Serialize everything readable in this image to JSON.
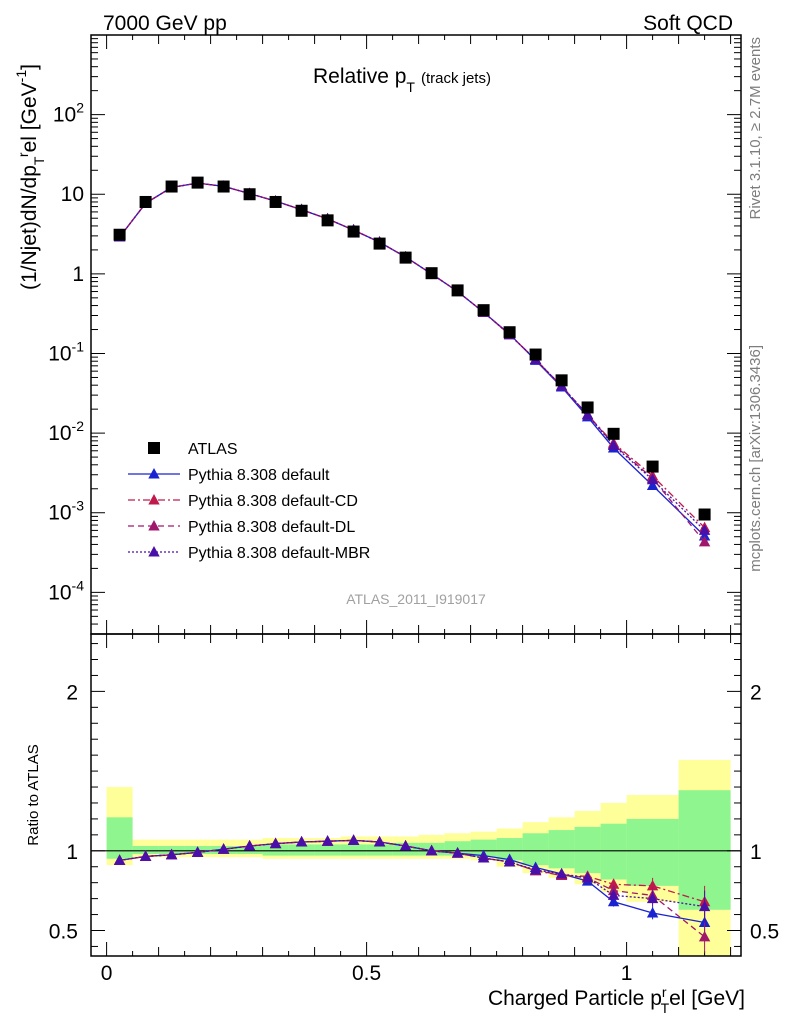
{
  "header": {
    "left": "7000 GeV pp",
    "right": "Soft QCD"
  },
  "side_labels": {
    "rivet": "Rivet 3.1.10, ≥ 2.7M events",
    "source": "mcplots.cern.ch [arXiv:1306.3436]"
  },
  "analysis_id": "ATLAS_2011_I919017",
  "chart_data": [
    {
      "type": "line",
      "title": "Relative p_T (track jets)",
      "ylabel": "(1/Njet)dN/dp_T^rel [GeV^-1]",
      "xlabel": "",
      "yscale": "log",
      "xlim": [
        -0.03,
        1.22
      ],
      "ylim": [
        3e-05,
        1000
      ],
      "ytick_labels": [
        "10^-4",
        "10^-3",
        "10^-2",
        "10^-1",
        "1",
        "10",
        "10^2"
      ],
      "legend_position": "lower-left",
      "x": [
        0.025,
        0.075,
        0.125,
        0.175,
        0.225,
        0.275,
        0.325,
        0.375,
        0.425,
        0.475,
        0.525,
        0.575,
        0.625,
        0.675,
        0.725,
        0.775,
        0.825,
        0.875,
        0.925,
        0.975,
        1.05,
        1.15
      ],
      "series": [
        {
          "name": "ATLAS",
          "color": "#000000",
          "style": "markers",
          "values": [
            3.1,
            8.0,
            12.5,
            14.0,
            12.5,
            10.0,
            8.0,
            6.2,
            4.7,
            3.4,
            2.4,
            1.6,
            1.02,
            0.62,
            0.35,
            0.185,
            0.097,
            0.046,
            0.021,
            0.0098,
            0.0038,
            0.00095
          ]
        },
        {
          "name": "Pythia 8.308 default",
          "color": "#1a23d0",
          "style": "solid",
          "values": [
            2.9,
            7.7,
            12.2,
            13.8,
            12.6,
            10.2,
            8.2,
            6.4,
            4.9,
            3.55,
            2.5,
            1.63,
            1.0,
            0.6,
            0.33,
            0.175,
            0.082,
            0.038,
            0.016,
            0.0065,
            0.0022,
            0.00051
          ]
        },
        {
          "name": "Pythia 8.308 default-CD",
          "color": "#c01a4c",
          "style": "dashdot",
          "values": [
            2.9,
            7.7,
            12.2,
            13.8,
            12.6,
            10.2,
            8.2,
            6.4,
            4.9,
            3.55,
            2.5,
            1.63,
            1.0,
            0.6,
            0.33,
            0.172,
            0.084,
            0.039,
            0.017,
            0.0075,
            0.0029,
            0.00065
          ]
        },
        {
          "name": "Pythia 8.308 default-DL",
          "color": "#a0186c",
          "style": "dashed",
          "values": [
            2.9,
            7.7,
            12.2,
            13.8,
            12.6,
            10.2,
            8.2,
            6.4,
            4.9,
            3.55,
            2.5,
            1.63,
            1.0,
            0.6,
            0.33,
            0.172,
            0.084,
            0.039,
            0.017,
            0.0072,
            0.0027,
            0.00043
          ]
        },
        {
          "name": "Pythia 8.308 default-MBR",
          "color": "#4a0fa8",
          "style": "dotted",
          "values": [
            2.9,
            7.7,
            12.2,
            13.8,
            12.6,
            10.2,
            8.2,
            6.4,
            4.9,
            3.55,
            2.5,
            1.63,
            1.0,
            0.6,
            0.33,
            0.172,
            0.084,
            0.039,
            0.017,
            0.007,
            0.0026,
            0.0006
          ]
        }
      ]
    },
    {
      "type": "line",
      "title": "",
      "ylabel": "Ratio to ATLAS",
      "xlabel": "Charged Particle p_T^rel [GeV]",
      "xlim": [
        -0.03,
        1.22
      ],
      "ylim": [
        0.34,
        2.36
      ],
      "ytick_labels": [
        "0.5",
        "1",
        "2"
      ],
      "xtick_labels": [
        "0",
        "0.5",
        "1"
      ],
      "x": [
        0.025,
        0.075,
        0.125,
        0.175,
        0.225,
        0.275,
        0.325,
        0.375,
        0.425,
        0.475,
        0.525,
        0.575,
        0.625,
        0.675,
        0.725,
        0.775,
        0.825,
        0.875,
        0.925,
        0.975,
        1.05,
        1.15
      ],
      "bands": {
        "edges": [
          0.0,
          0.05,
          0.1,
          0.15,
          0.2,
          0.25,
          0.3,
          0.35,
          0.4,
          0.45,
          0.5,
          0.55,
          0.6,
          0.65,
          0.7,
          0.75,
          0.8,
          0.85,
          0.9,
          0.95,
          1.0,
          1.1,
          1.2
        ],
        "yellow": {
          "color": "#ffff9a",
          "low": [
            0.91,
            0.96,
            0.96,
            0.96,
            0.96,
            0.96,
            0.95,
            0.95,
            0.95,
            0.95,
            0.95,
            0.95,
            0.95,
            0.95,
            0.94,
            0.9,
            0.86,
            0.83,
            0.79,
            0.74,
            0.68,
            0.34
          ],
          "high": [
            1.4,
            1.07,
            1.07,
            1.07,
            1.07,
            1.07,
            1.08,
            1.08,
            1.08,
            1.09,
            1.09,
            1.09,
            1.1,
            1.11,
            1.12,
            1.14,
            1.18,
            1.21,
            1.25,
            1.3,
            1.35,
            1.57
          ]
        },
        "green": {
          "color": "#8ff58f",
          "low": [
            0.95,
            0.98,
            0.98,
            0.98,
            0.98,
            0.98,
            0.97,
            0.97,
            0.97,
            0.97,
            0.97,
            0.97,
            0.97,
            0.97,
            0.96,
            0.94,
            0.91,
            0.89,
            0.86,
            0.82,
            0.78,
            0.63
          ],
          "high": [
            1.21,
            1.03,
            1.03,
            1.03,
            1.03,
            1.03,
            1.04,
            1.04,
            1.04,
            1.04,
            1.04,
            1.05,
            1.05,
            1.06,
            1.07,
            1.08,
            1.11,
            1.13,
            1.15,
            1.17,
            1.2,
            1.38
          ]
        }
      },
      "series": [
        {
          "name": "Pythia 8.308 default",
          "color": "#1a23d0",
          "style": "solid",
          "values": [
            0.94,
            0.965,
            0.975,
            0.99,
            1.01,
            1.03,
            1.045,
            1.055,
            1.06,
            1.065,
            1.055,
            1.03,
            1.0,
            0.985,
            0.97,
            0.945,
            0.895,
            0.855,
            0.81,
            0.68,
            0.61,
            0.55
          ],
          "errors": [
            0.01,
            0.005,
            0.005,
            0.005,
            0.005,
            0.005,
            0.005,
            0.005,
            0.005,
            0.005,
            0.005,
            0.005,
            0.005,
            0.005,
            0.005,
            0.01,
            0.015,
            0.02,
            0.025,
            0.03,
            0.04,
            0.08
          ]
        },
        {
          "name": "Pythia 8.308 default-CD",
          "color": "#c01a4c",
          "style": "dashdot",
          "values": [
            0.94,
            0.965,
            0.975,
            0.99,
            1.01,
            1.03,
            1.045,
            1.055,
            1.06,
            1.065,
            1.055,
            1.03,
            1.0,
            0.985,
            0.955,
            0.93,
            0.875,
            0.845,
            0.84,
            0.79,
            0.78,
            0.68
          ],
          "errors": [
            0.01,
            0.005,
            0.005,
            0.005,
            0.005,
            0.005,
            0.005,
            0.005,
            0.005,
            0.005,
            0.005,
            0.005,
            0.005,
            0.005,
            0.005,
            0.01,
            0.015,
            0.02,
            0.025,
            0.03,
            0.05,
            0.1
          ]
        },
        {
          "name": "Pythia 8.308 default-DL",
          "color": "#a0186c",
          "style": "dashed",
          "values": [
            0.94,
            0.965,
            0.975,
            0.99,
            1.01,
            1.03,
            1.045,
            1.055,
            1.06,
            1.065,
            1.055,
            1.03,
            1.0,
            0.985,
            0.955,
            0.93,
            0.875,
            0.85,
            0.83,
            0.75,
            0.72,
            0.46
          ],
          "errors": [
            0.01,
            0.005,
            0.005,
            0.005,
            0.005,
            0.005,
            0.005,
            0.005,
            0.005,
            0.005,
            0.005,
            0.005,
            0.005,
            0.005,
            0.005,
            0.01,
            0.015,
            0.02,
            0.025,
            0.03,
            0.05,
            0.1
          ]
        },
        {
          "name": "Pythia 8.308 default-MBR",
          "color": "#4a0fa8",
          "style": "dotted",
          "values": [
            0.94,
            0.965,
            0.975,
            0.99,
            1.01,
            1.03,
            1.045,
            1.055,
            1.06,
            1.065,
            1.055,
            1.03,
            1.0,
            0.985,
            0.955,
            0.93,
            0.88,
            0.855,
            0.83,
            0.72,
            0.7,
            0.65
          ],
          "errors": [
            0.01,
            0.005,
            0.005,
            0.005,
            0.005,
            0.005,
            0.005,
            0.005,
            0.005,
            0.005,
            0.005,
            0.005,
            0.005,
            0.005,
            0.005,
            0.01,
            0.015,
            0.02,
            0.025,
            0.03,
            0.05,
            0.1
          ]
        }
      ]
    }
  ]
}
